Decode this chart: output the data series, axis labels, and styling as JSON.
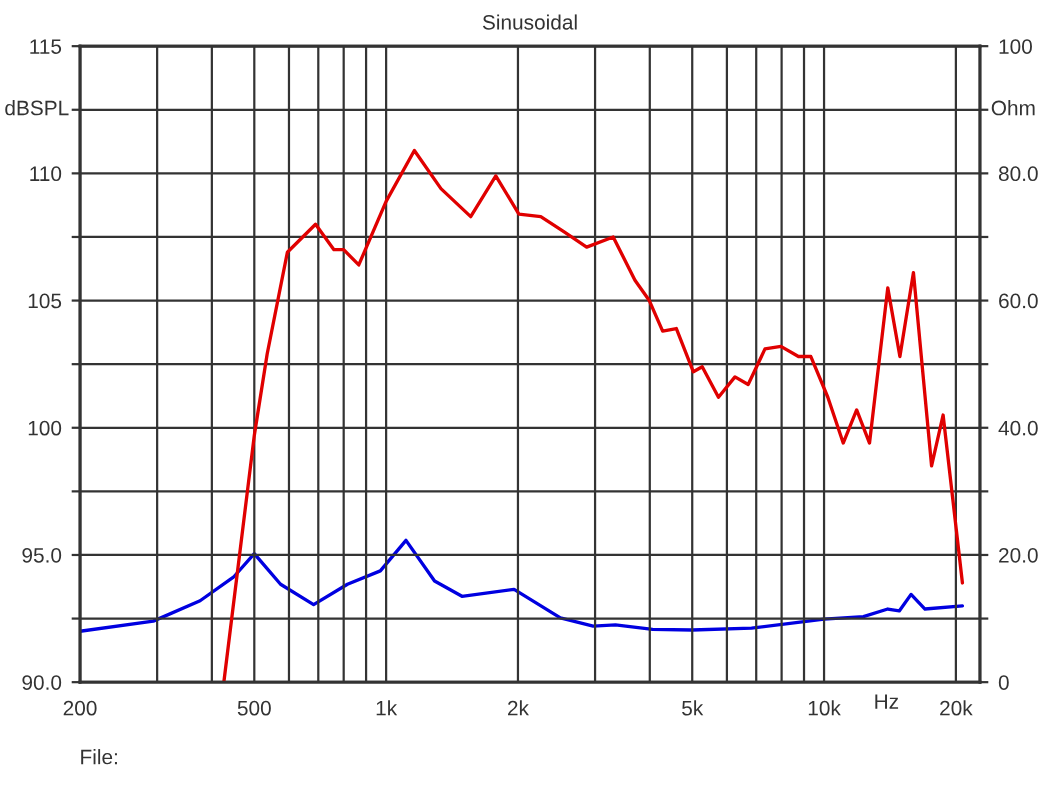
{
  "chart_data": {
    "type": "line",
    "title": "Sinusoidal",
    "xlabel": "Hz",
    "ylabel": "dBSPL",
    "y2label": "Ohm",
    "log": "x",
    "grid": true,
    "xlim": [
      200,
      22700
    ],
    "xticks": [
      {
        "value": 200,
        "label": "200"
      },
      {
        "value": 300,
        "label": null
      },
      {
        "value": 400,
        "label": null
      },
      {
        "value": 500,
        "label": "500"
      },
      {
        "value": 600,
        "label": null
      },
      {
        "value": 700,
        "label": null
      },
      {
        "value": 800,
        "label": null
      },
      {
        "value": 900,
        "label": null
      },
      {
        "value": 1000,
        "label": "1k"
      },
      {
        "value": 2000,
        "label": "2k"
      },
      {
        "value": 3000,
        "label": null
      },
      {
        "value": 4000,
        "label": null
      },
      {
        "value": 5000,
        "label": "5k"
      },
      {
        "value": 6000,
        "label": null
      },
      {
        "value": 7000,
        "label": null
      },
      {
        "value": 8000,
        "label": null
      },
      {
        "value": 9000,
        "label": null
      },
      {
        "value": 10000,
        "label": "10k"
      },
      {
        "value": 20000,
        "label": "20k"
      }
    ],
    "ylim": [
      90,
      115
    ],
    "yticks": [
      {
        "value": 90,
        "label": "90.0"
      },
      {
        "value": 92.5,
        "label": null
      },
      {
        "value": 95,
        "label": "95.0"
      },
      {
        "value": 97.5,
        "label": null
      },
      100,
      {
        "value": 102.5,
        "label": null
      },
      105,
      {
        "value": 107.5,
        "label": null
      },
      110,
      {
        "value": 112.5,
        "label": null
      },
      115
    ],
    "y2lim": [
      0,
      100
    ],
    "y2ticks": [
      0,
      {
        "value": 10,
        "label": null
      },
      {
        "value": 20,
        "label": "20.0"
      },
      {
        "value": 30,
        "label": null
      },
      {
        "value": 40,
        "label": "40.0"
      },
      {
        "value": 50,
        "label": null
      },
      {
        "value": 60,
        "label": "60.0"
      },
      {
        "value": 70,
        "label": null
      },
      {
        "value": 80,
        "label": "80.0"
      },
      {
        "value": 90,
        "label": null
      },
      100
    ],
    "annotations": [
      "File:"
    ],
    "series": [
      {
        "color": "#e00000",
        "x": [
          426,
          500,
          535,
          595,
          690,
          760,
          800,
          866,
          1000,
          1160,
          1334,
          1560,
          1780,
          2010,
          2255,
          2550,
          2870,
          3300,
          3700,
          3990,
          4280,
          4600,
          5030,
          5270,
          5740,
          6260,
          6710,
          7330,
          7970,
          8740,
          9330,
          10200,
          11060,
          11870,
          12700,
          13980,
          14900,
          16000,
          17600,
          18700,
          20700
        ],
        "values": [
          90.0,
          99.7,
          102.9,
          106.9,
          108.0,
          107.0,
          107.0,
          106.4,
          108.9,
          110.9,
          109.4,
          108.3,
          109.9,
          108.4,
          108.3,
          107.7,
          107.1,
          107.5,
          105.8,
          105.0,
          103.8,
          103.9,
          102.2,
          102.4,
          101.2,
          102.0,
          101.7,
          103.1,
          103.2,
          102.8,
          102.8,
          101.2,
          99.4,
          100.7,
          99.4,
          105.5,
          102.8,
          106.1,
          98.5,
          100.5,
          93.9
        ]
      },
      {
        "color": "#0000e0",
        "axis": "y2",
        "x": [
          200,
          294,
          376,
          448,
          500,
          574,
          683,
          816,
          970,
          1110,
          1290,
          1490,
          1960,
          2500,
          2970,
          3340,
          4060,
          5000,
          6830,
          10000,
          12300,
          13980,
          14850,
          15800,
          17000,
          20700
        ],
        "values": [
          8.0,
          9.6,
          12.8,
          16.5,
          20.2,
          15.4,
          12.2,
          15.4,
          17.5,
          22.3,
          15.9,
          13.5,
          14.6,
          10.1,
          8.8,
          9.0,
          8.3,
          8.2,
          8.5,
          9.9,
          10.3,
          11.5,
          11.2,
          13.8,
          11.5,
          12.0
        ]
      }
    ]
  }
}
